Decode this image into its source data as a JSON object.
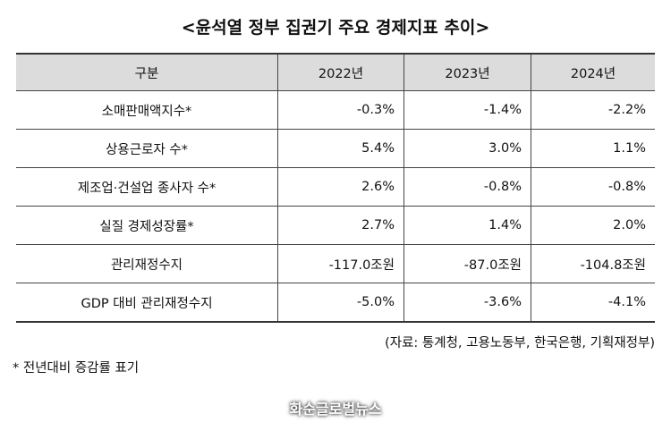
{
  "title": "<윤석열 정부 집권기 주요 경제지표 추이>",
  "table": {
    "headers": [
      "구분",
      "2022년",
      "2023년",
      "2024년"
    ],
    "rows": [
      {
        "label": "소매판매액지수*",
        "values": [
          "-0.3%",
          "-1.4%",
          "-2.2%"
        ]
      },
      {
        "label": "상용근로자 수*",
        "values": [
          "5.4%",
          "3.0%",
          "1.1%"
        ]
      },
      {
        "label": "제조업·건설업 종사자 수*",
        "values": [
          "2.6%",
          "-0.8%",
          "-0.8%"
        ]
      },
      {
        "label": "실질 경제성장률*",
        "values": [
          "2.7%",
          "1.4%",
          "2.0%"
        ]
      },
      {
        "label": "관리재정수지",
        "values": [
          "-117.0조원",
          "-87.0조원",
          "-104.8조원"
        ]
      },
      {
        "label": "GDP 대비 관리재정수지",
        "values": [
          "-5.0%",
          "-3.6%",
          "-4.1%"
        ]
      }
    ]
  },
  "source": "(자료: 통계청, 고용노동부, 한국은행, 기획재정부)",
  "note": "* 전년대비 증감률 표기",
  "watermark": "화순글로벌뉴스"
}
